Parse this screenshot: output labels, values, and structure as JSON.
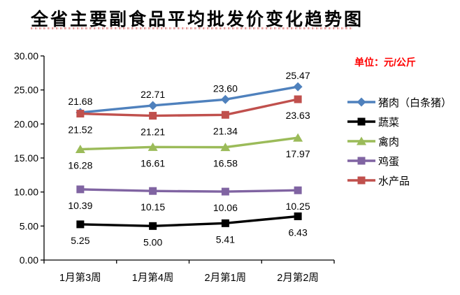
{
  "title": "全省主要副食品平均批发价变化趋势图",
  "unit_label": "单位：元/公斤",
  "colors": {
    "unit_text": "#FF0000",
    "axis": "#000000",
    "background": "#FFFFFF",
    "data_label_text": "#000000"
  },
  "chart_data": {
    "type": "line",
    "title": "全省主要副食品平均批发价变化趋势图",
    "categories": [
      "1月第3周",
      "1月第4周",
      "2月第1周",
      "2月第2周"
    ],
    "series": [
      {
        "name": "猪肉（白条猪）",
        "values": [
          21.68,
          22.71,
          23.6,
          25.47
        ],
        "color": "#4F81BD",
        "marker": "diamond",
        "label_position": "above"
      },
      {
        "name": "蔬菜",
        "values": [
          5.25,
          5.0,
          5.41,
          6.43
        ],
        "color": "#000000",
        "marker": "square",
        "label_position": "below"
      },
      {
        "name": "禽肉",
        "values": [
          16.28,
          16.61,
          16.58,
          17.97
        ],
        "color": "#9BBB59",
        "marker": "triangle",
        "label_position": "below"
      },
      {
        "name": "鸡蛋",
        "values": [
          10.39,
          10.15,
          10.06,
          10.25
        ],
        "color": "#8064A2",
        "marker": "square",
        "label_position": "below"
      },
      {
        "name": "水产品",
        "values": [
          21.52,
          21.21,
          21.34,
          23.63
        ],
        "color": "#C0504D",
        "marker": "square",
        "label_position": "below"
      }
    ],
    "ylim": [
      0,
      30
    ],
    "ytick_step": 5,
    "ytick_labels": [
      "0.00",
      "5.00",
      "10.00",
      "15.00",
      "20.00",
      "25.00",
      "30.00"
    ],
    "xlabel": "",
    "ylabel": "",
    "grid": false,
    "legend_position": "right",
    "data_labels_decimals": 2
  }
}
